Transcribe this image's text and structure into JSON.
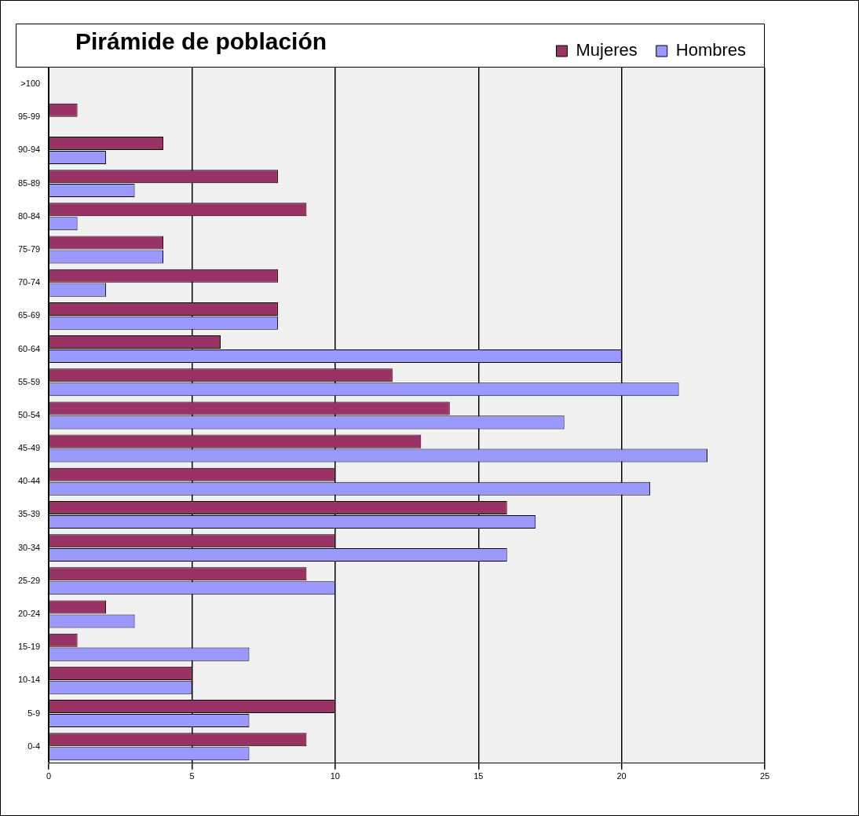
{
  "chart_data": {
    "type": "bar",
    "orientation": "horizontal",
    "title": "Pirámide de población",
    "categories": [
      ">100",
      "95-99",
      "90-94",
      "85-89",
      "80-84",
      "75-79",
      "70-74",
      "65-69",
      "60-64",
      "55-59",
      "50-54",
      "45-49",
      "40-44",
      "35-39",
      "30-34",
      "25-29",
      "20-24",
      "15-19",
      "10-14",
      "5-9",
      "0-4"
    ],
    "series": [
      {
        "name": "Mujeres",
        "color": "#993366",
        "values": [
          0,
          1,
          4,
          8,
          9,
          4,
          8,
          8,
          6,
          12,
          14,
          13,
          10,
          16,
          10,
          9,
          2,
          1,
          5,
          10,
          9
        ]
      },
      {
        "name": "Hombres",
        "color": "#9999ff",
        "values": [
          0,
          0,
          2,
          3,
          1,
          4,
          2,
          8,
          20,
          22,
          18,
          23,
          21,
          17,
          16,
          10,
          3,
          7,
          5,
          7,
          7
        ]
      }
    ],
    "xlim": [
      0,
      25
    ],
    "xticks": [
      0,
      5,
      10,
      15,
      20,
      25
    ],
    "grid": "x",
    "legend": "top right"
  }
}
